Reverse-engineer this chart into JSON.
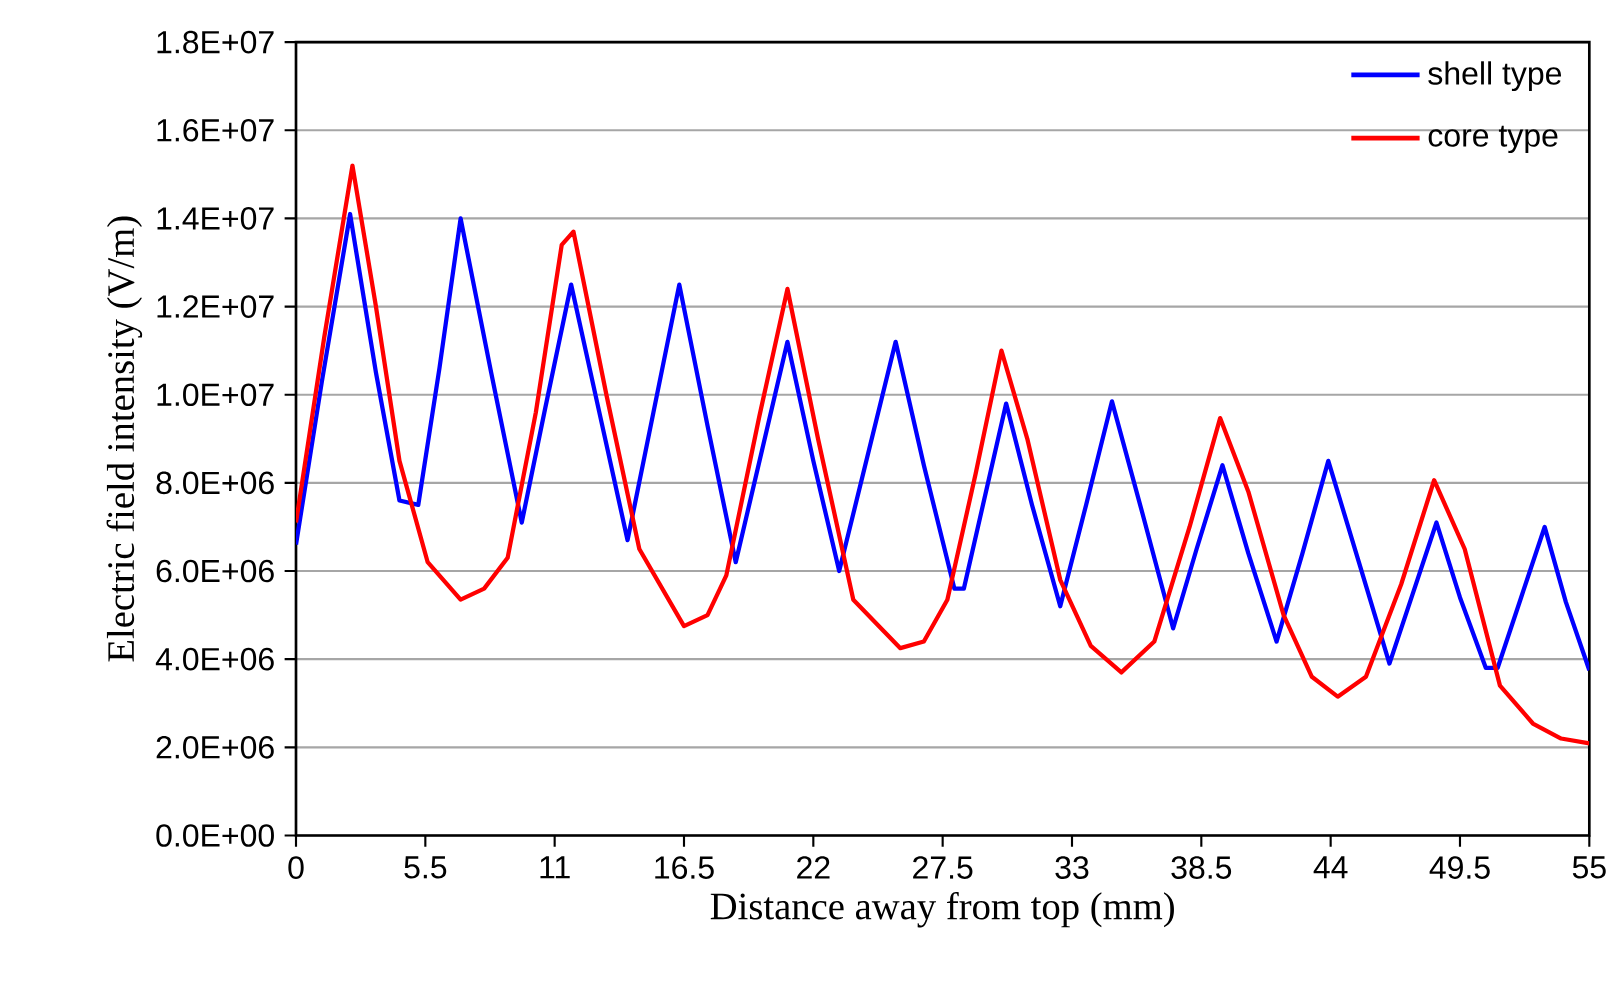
{
  "chart_data": {
    "type": "line",
    "xlabel": "Distance away from top (mm)",
    "ylabel": "Electric field intensity (V/m)",
    "xlim": [
      0,
      55
    ],
    "xticks": [
      0,
      5.5,
      11,
      16.5,
      22,
      27.5,
      33,
      38.5,
      44,
      49.5,
      55
    ],
    "ylim": [
      0,
      18000000
    ],
    "yticks": [
      {
        "value": 0,
        "label": "0.0E+00"
      },
      {
        "value": 2000000,
        "label": "2.0E+06"
      },
      {
        "value": 4000000,
        "label": "4.0E+06"
      },
      {
        "value": 6000000,
        "label": "6.0E+06"
      },
      {
        "value": 8000000,
        "label": "8.0E+06"
      },
      {
        "value": 10000000,
        "label": "1.0E+07"
      },
      {
        "value": 12000000,
        "label": "1.2E+07"
      },
      {
        "value": 14000000,
        "label": "1.4E+07"
      },
      {
        "value": 16000000,
        "label": "1.6E+07"
      },
      {
        "value": 18000000,
        "label": "1.8E+07"
      }
    ],
    "grid": "y",
    "legend": "top right",
    "marker": "none",
    "line_style": "solid",
    "series": [
      {
        "name": "shell type",
        "color": "#0000ff",
        "x": [
          0,
          1.1,
          2.3,
          3.4,
          4.4,
          5.2,
          6.1,
          7.0,
          8.3,
          9.6,
          10.6,
          11.7,
          12.9,
          14.1,
          15.2,
          16.3,
          17.5,
          18.7,
          19.8,
          20.9,
          22.0,
          23.1,
          24.3,
          25.5,
          26.7,
          28.0,
          28.4,
          29.3,
          30.2,
          31.3,
          32.5,
          33.6,
          34.7,
          36.0,
          37.3,
          38.3,
          39.4,
          40.5,
          41.7,
          42.8,
          43.9,
          45.2,
          46.5,
          47.5,
          48.5,
          49.5,
          50.6,
          51.1,
          52.1,
          53.1,
          54.0,
          55
        ],
        "values": [
          6600000,
          10300000,
          14100000,
          10500000,
          7600000,
          7500000,
          10600000,
          14000000,
          10500000,
          7100000,
          9700000,
          12500000,
          9600000,
          6700000,
          9600000,
          12500000,
          9300000,
          6200000,
          8700000,
          11200000,
          8500000,
          6000000,
          8600000,
          11200000,
          8400000,
          5600000,
          5600000,
          7700000,
          9800000,
          7500000,
          5200000,
          7500000,
          9850000,
          7300000,
          4700000,
          6500000,
          8400000,
          6400000,
          4400000,
          6400000,
          8500000,
          6200000,
          3900000,
          5500000,
          7100000,
          5400000,
          3800000,
          3800000,
          5400000,
          7000000,
          5300000,
          3750000
        ]
      },
      {
        "name": "core type",
        "color": "#ff0000",
        "x": [
          0,
          1.2,
          2.4,
          3.4,
          4.4,
          5.6,
          7.0,
          8.0,
          9.0,
          10.2,
          11.3,
          11.8,
          13.2,
          14.6,
          16.5,
          17.5,
          18.3,
          19.7,
          20.9,
          22.2,
          23.7,
          25.7,
          26.7,
          27.7,
          28.9,
          30.0,
          31.1,
          32.5,
          33.8,
          35.1,
          36.5,
          38.0,
          39.3,
          40.5,
          42.0,
          43.2,
          44.3,
          45.5,
          47.0,
          48.4,
          49.7,
          51.2,
          52.6,
          53.8,
          55
        ],
        "values": [
          7100000,
          11300000,
          15200000,
          12000000,
          8500000,
          6200000,
          5350000,
          5600000,
          6300000,
          9600000,
          13400000,
          13700000,
          10000000,
          6500000,
          4750000,
          5000000,
          5900000,
          9500000,
          12400000,
          9000000,
          5350000,
          4250000,
          4400000,
          5350000,
          8200000,
          11000000,
          9000000,
          5800000,
          4300000,
          3700000,
          4400000,
          7000000,
          9470000,
          7800000,
          5000000,
          3600000,
          3150000,
          3600000,
          5700000,
          8060000,
          6500000,
          3400000,
          2540000,
          2200000,
          2090000
        ]
      }
    ]
  }
}
